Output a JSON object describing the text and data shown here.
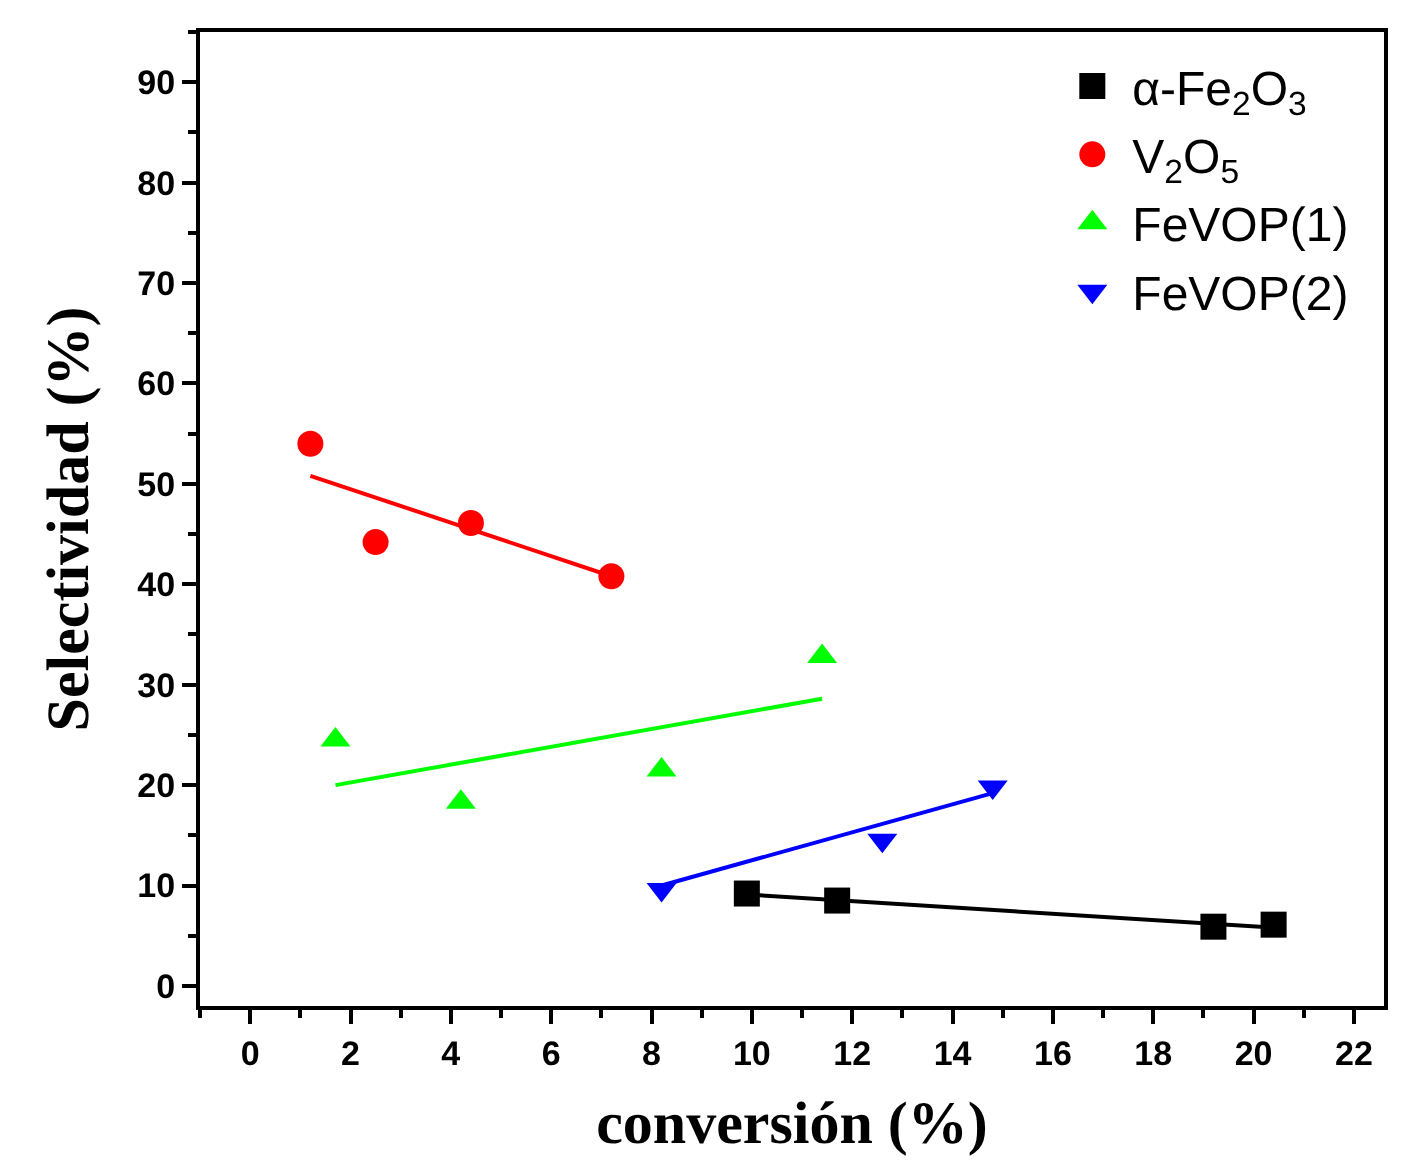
{
  "chart_data": {
    "type": "scatter",
    "xlabel": "conversión (%)",
    "ylabel": "Selectividad (%)",
    "xlim": [
      -1,
      22.6
    ],
    "xticks": [
      0,
      2,
      4,
      6,
      8,
      10,
      12,
      14,
      16,
      18,
      20,
      22
    ],
    "ylim": [
      -2,
      95
    ],
    "yticks": [
      0,
      10,
      20,
      30,
      40,
      50,
      60,
      70,
      80,
      90
    ],
    "legend": "top right",
    "series": [
      {
        "name": "α-Fe$_{2}$O$_{3}$",
        "marker": "square",
        "color": "#000000",
        "x": [
          9.9,
          11.7,
          19.2,
          20.4
        ],
        "values": [
          9.2,
          8.5,
          5.9,
          6.1
        ]
      },
      {
        "name": "V$_{2}$O$_{5}$",
        "marker": "circle",
        "color": "#ff0000",
        "x": [
          1.2,
          2.5,
          4.4,
          7.2
        ],
        "values": [
          54,
          44.2,
          46.1,
          40.8
        ]
      },
      {
        "name": "FeVOP(1)",
        "marker": "triangle",
        "color": "#00ff00",
        "x": [
          1.7,
          4.2,
          8.2,
          11.4
        ],
        "values": [
          24.5,
          18.3,
          21.5,
          32.8
        ]
      },
      {
        "name": "FeVOP(2)",
        "marker": "triangle-down",
        "color": "#0000ff",
        "x": [
          8.2,
          12.6,
          14.8
        ],
        "values": [
          9.6,
          14.5,
          19.8
        ]
      },
      {
        "type": "line",
        "marker": "none",
        "color": "#000000",
        "x": [
          9.9,
          20.4
        ],
        "values": [
          9.1,
          5.8
        ]
      },
      {
        "type": "line",
        "marker": "none",
        "color": "#ff0000",
        "x": [
          1.2,
          7.2
        ],
        "values": [
          50.8,
          40.8
        ]
      },
      {
        "type": "line",
        "marker": "none",
        "color": "#00ff00",
        "x": [
          1.7,
          11.4
        ],
        "values": [
          20,
          28.6
        ]
      },
      {
        "type": "line",
        "marker": "none",
        "color": "#0000ff",
        "x": [
          8.2,
          14.8
        ],
        "values": [
          10,
          19.2
        ]
      }
    ]
  }
}
